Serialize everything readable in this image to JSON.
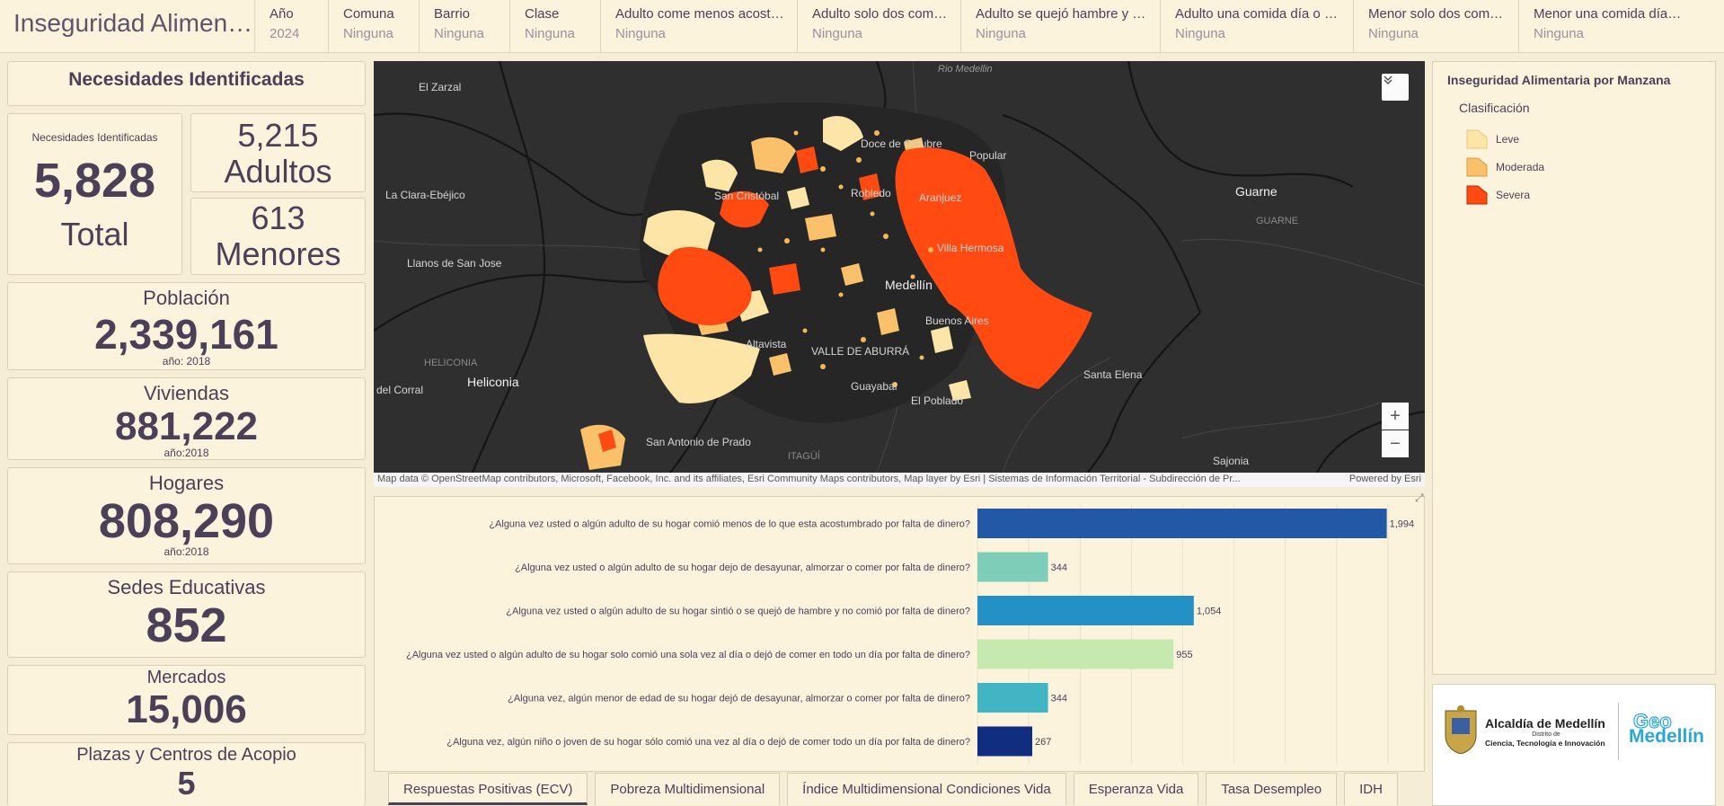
{
  "header": {
    "title": "Inseguridad Alimentaria Medellín",
    "filters": [
      {
        "label": "Año",
        "value": "2024"
      },
      {
        "label": "Comuna",
        "value": "Ninguna"
      },
      {
        "label": "Barrio",
        "value": "Ninguna"
      },
      {
        "label": "Clase",
        "value": "Ninguna"
      },
      {
        "label": "Adulto come menos acost…",
        "value": "Ninguna"
      },
      {
        "label": "Adulto solo dos com…",
        "value": "Ninguna"
      },
      {
        "label": "Adulto se quejó hambre y …",
        "value": "Ninguna"
      },
      {
        "label": "Adulto una comida día o …",
        "value": "Ninguna"
      },
      {
        "label": "Menor solo dos com…",
        "value": "Ninguna"
      },
      {
        "label": "Menor una comida día o …",
        "value": "Ninguna"
      }
    ]
  },
  "indicators": {
    "section_title": "Necesidades Identificadas",
    "total": {
      "label": "Necesidades Identificadas",
      "value": "5,828",
      "caption": "Total"
    },
    "adults": {
      "value": "5,215",
      "caption": "Adultos"
    },
    "minors": {
      "value": "613",
      "caption": "Menores"
    },
    "population": {
      "title": "Población",
      "value": "2,339,161",
      "note": "año: 2018"
    },
    "housing": {
      "title": "Viviendas",
      "value": "881,222",
      "note": "año:2018"
    },
    "households": {
      "title": "Hogares",
      "value": "808,290",
      "note": "año:2018"
    },
    "schools": {
      "title": "Sedes Educativas",
      "value": "852"
    },
    "markets": {
      "title": "Mercados",
      "value": "15,006"
    },
    "plazas": {
      "title": "Plazas y Centros de Acopio",
      "value": "5"
    }
  },
  "map": {
    "labels": {
      "rio": "Rio Medellin",
      "zarzal": "El Zarzal",
      "clara": "La Clara-Ebéjico",
      "llanos": "Llanos de San Jose",
      "heliconia_caps": "HELICONIA",
      "heliconia": "Heliconia",
      "corral": "del Corral",
      "santo_domingo": "Doce de Octubre",
      "popular": "Popular",
      "san_cristobal": "San Cristóbal",
      "robledo": "Robledo",
      "aranjuez": "Aranjuez",
      "villa_hermosa": "Villa Hermosa",
      "medellin": "Medellín",
      "buenos_aires": "Buenos Aires",
      "altavista": "Altavista",
      "valle": "VALLE DE ABURRÁ",
      "guayabal": "Guayabal",
      "poblado": "El Poblado",
      "san_antonio": "San Antonio de Prado",
      "itagui": "ITAGÜÍ",
      "guarne": "Guarne",
      "guarne_caps": "GUARNE",
      "santa_elena": "Santa Elena",
      "sajonia": "Sajonia"
    },
    "attribution": "Map data © OpenStreetMap contributors, Microsoft, Facebook, Inc. and its affiliates, Esri Community Maps contributors, Map layer by Esri | Sistemas de Información Territorial - Subdirección de Pr...",
    "powered_by": "Powered by Esri",
    "zoom_in": "+",
    "zoom_out": "−"
  },
  "chart_data": {
    "type": "bar",
    "orientation": "horizontal",
    "categories": [
      "¿Alguna vez usted o algún adulto de su hogar comió menos de lo que esta acostumbrado por falta de dinero?",
      "¿Alguna vez usted o algún adulto de su hogar dejo de desayunar, almorzar o comer por falta de dinero?",
      "¿Alguna vez usted o algún adulto de su hogar sintió o se quejó de hambre y no comió por falta de dinero?",
      "¿Alguna vez usted o algún adulto de su hogar solo comió una sola vez al día o dejó de comer en todo un día por falta de dinero?",
      "¿Alguna vez, algún menor de edad de su hogar dejó de desayunar, almorzar o comer por falta de dinero?",
      "¿Alguna vez, algún niño o joven de su hogar sólo comió una vez al día o dejó de comer todo un día por falta de dinero?"
    ],
    "values": [
      1994,
      344,
      1054,
      955,
      344,
      267
    ],
    "value_labels": [
      "1,994",
      "344",
      "1,054",
      "955",
      "344",
      "267"
    ],
    "colors": [
      "#2358a6",
      "#7ecdb8",
      "#2491c6",
      "#c6e9b0",
      "#41b5c4",
      "#102d7f"
    ],
    "xlim": [
      0,
      2000
    ],
    "grid": true
  },
  "tabs": [
    {
      "label": "Respuestas Positivas (ECV)",
      "active": true
    },
    {
      "label": "Pobreza Multidimensional",
      "active": false
    },
    {
      "label": "Índice Multidimensional Condiciones Vida",
      "active": false
    },
    {
      "label": "Esperanza Vida",
      "active": false
    },
    {
      "label": "Tasa Desempleo",
      "active": false
    },
    {
      "label": "IDH",
      "active": false
    }
  ],
  "legend": {
    "title": "Inseguridad Alimentaria por Manzana",
    "subtitle": "Clasificación",
    "items": [
      {
        "label": "Leve",
        "color": "#fde4a7"
      },
      {
        "label": "Moderada",
        "color": "#fbc16a"
      },
      {
        "label": "Severa",
        "color": "#ff4a12"
      }
    ]
  },
  "logo": {
    "line1": "Alcaldía de Medellín",
    "line2": "Distrito de",
    "line3": "Ciencia, Tecnología e Innovación",
    "geo": "Geo",
    "medellin": "Medellín"
  },
  "colors": {
    "background": "#f6edd6",
    "panel": "#fcf3dd",
    "text": "#4b4058",
    "map": "#2f2f2f"
  }
}
